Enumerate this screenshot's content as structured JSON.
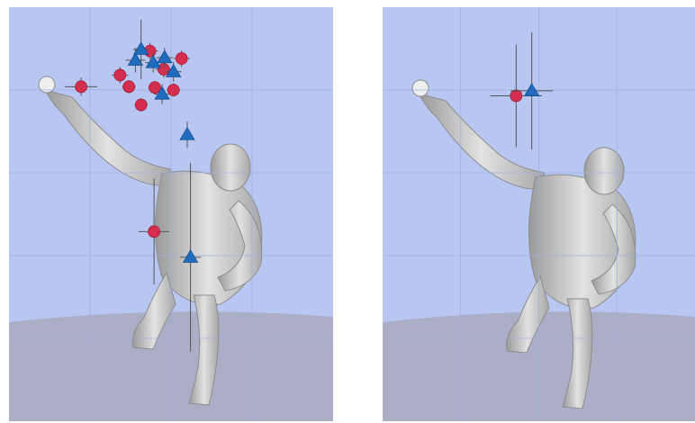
{
  "chart_data": [
    {
      "type": "scatter",
      "xlim": [
        0,
        4
      ],
      "ylim": [
        0,
        5
      ],
      "xticks": [
        1,
        2,
        3
      ],
      "yticks": [
        1,
        2,
        3,
        4
      ],
      "grid": true,
      "series": [
        {
          "color": "#d42e4e",
          "marker": "circle",
          "x": [
            0.89,
            1.37,
            1.48,
            1.63,
            1.74,
            1.91,
            1.8,
            2.03,
            2.13,
            1.79
          ],
          "values": [
            4.04,
            4.18,
            4.04,
            3.82,
            4.47,
            4.25,
            4.03,
            4.0,
            4.38,
            2.29
          ],
          "xerr": [
            0.2,
            0.1,
            0.08,
            0.08,
            0.1,
            0.1,
            0.08,
            0.08,
            0.1,
            0.19
          ],
          "yerr": [
            0.11,
            0.1,
            0.08,
            0.08,
            0.1,
            0.1,
            0.08,
            0.08,
            0.1,
            0.64
          ]
        },
        {
          "color": "#1f6cbf",
          "marker": "triangle",
          "x": [
            1.56,
            1.63,
            1.78,
            1.92,
            2.03,
            1.89,
            2.2,
            2.24
          ],
          "values": [
            4.36,
            4.49,
            4.33,
            4.39,
            4.22,
            3.95,
            3.46,
            1.98
          ],
          "xerr": [
            0.12,
            0.1,
            0.1,
            0.1,
            0.1,
            0.1,
            0.05,
            0.13
          ],
          "yerr": [
            0.15,
            0.36,
            0.12,
            0.12,
            0.12,
            0.12,
            0.16,
            1.14
          ]
        }
      ]
    },
    {
      "type": "scatter",
      "xlim": [
        0,
        4
      ],
      "ylim": [
        0,
        5
      ],
      "xticks": [
        1,
        2,
        3
      ],
      "yticks": [
        1,
        2,
        3,
        4
      ],
      "grid": true,
      "series": [
        {
          "color": "#d42e4e",
          "marker": "circle",
          "x": [
            1.71
          ],
          "values": [
            3.93
          ],
          "xerr": [
            0.33
          ],
          "yerr": [
            0.62
          ]
        },
        {
          "color": "#1f6cbf",
          "marker": "triangle",
          "x": [
            1.91
          ],
          "values": [
            3.99
          ],
          "xerr": [
            0.27
          ],
          "yerr": [
            0.71
          ]
        }
      ]
    }
  ]
}
